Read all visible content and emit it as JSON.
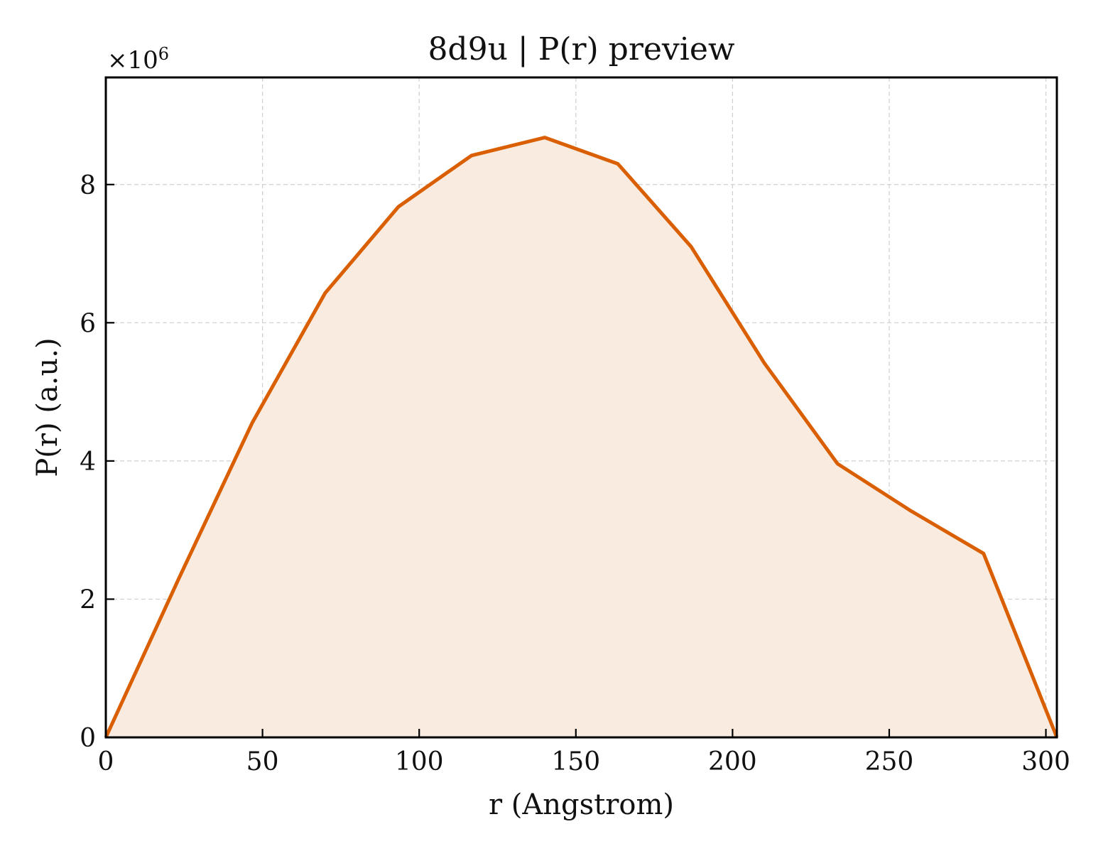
{
  "chart_data": {
    "type": "area",
    "title": "8d9u | P(r) preview",
    "xlabel": "r (Angstrom)",
    "ylabel": "P(r) (a.u.)",
    "y_multiplier_label": "×10",
    "y_multiplier_exponent": "6",
    "xlim": [
      0,
      303.5
    ],
    "ylim": [
      0,
      9.55
    ],
    "xticks": [
      0,
      50,
      100,
      150,
      200,
      250,
      300
    ],
    "yticks": [
      0,
      2,
      4,
      6,
      8
    ],
    "grid": true,
    "line_color": "#d95f02",
    "fill_color": "#f9ebe0",
    "series": [
      {
        "x": [
          0,
          23.3,
          46.7,
          70.0,
          93.4,
          116.7,
          140.1,
          163.4,
          186.8,
          210.1,
          233.5,
          256.8,
          280.1,
          303.5
        ],
        "values": [
          0.0,
          2.3,
          4.55,
          6.43,
          7.68,
          8.42,
          8.68,
          8.3,
          7.1,
          5.42,
          3.96,
          3.28,
          2.66,
          0.0
        ]
      }
    ]
  }
}
